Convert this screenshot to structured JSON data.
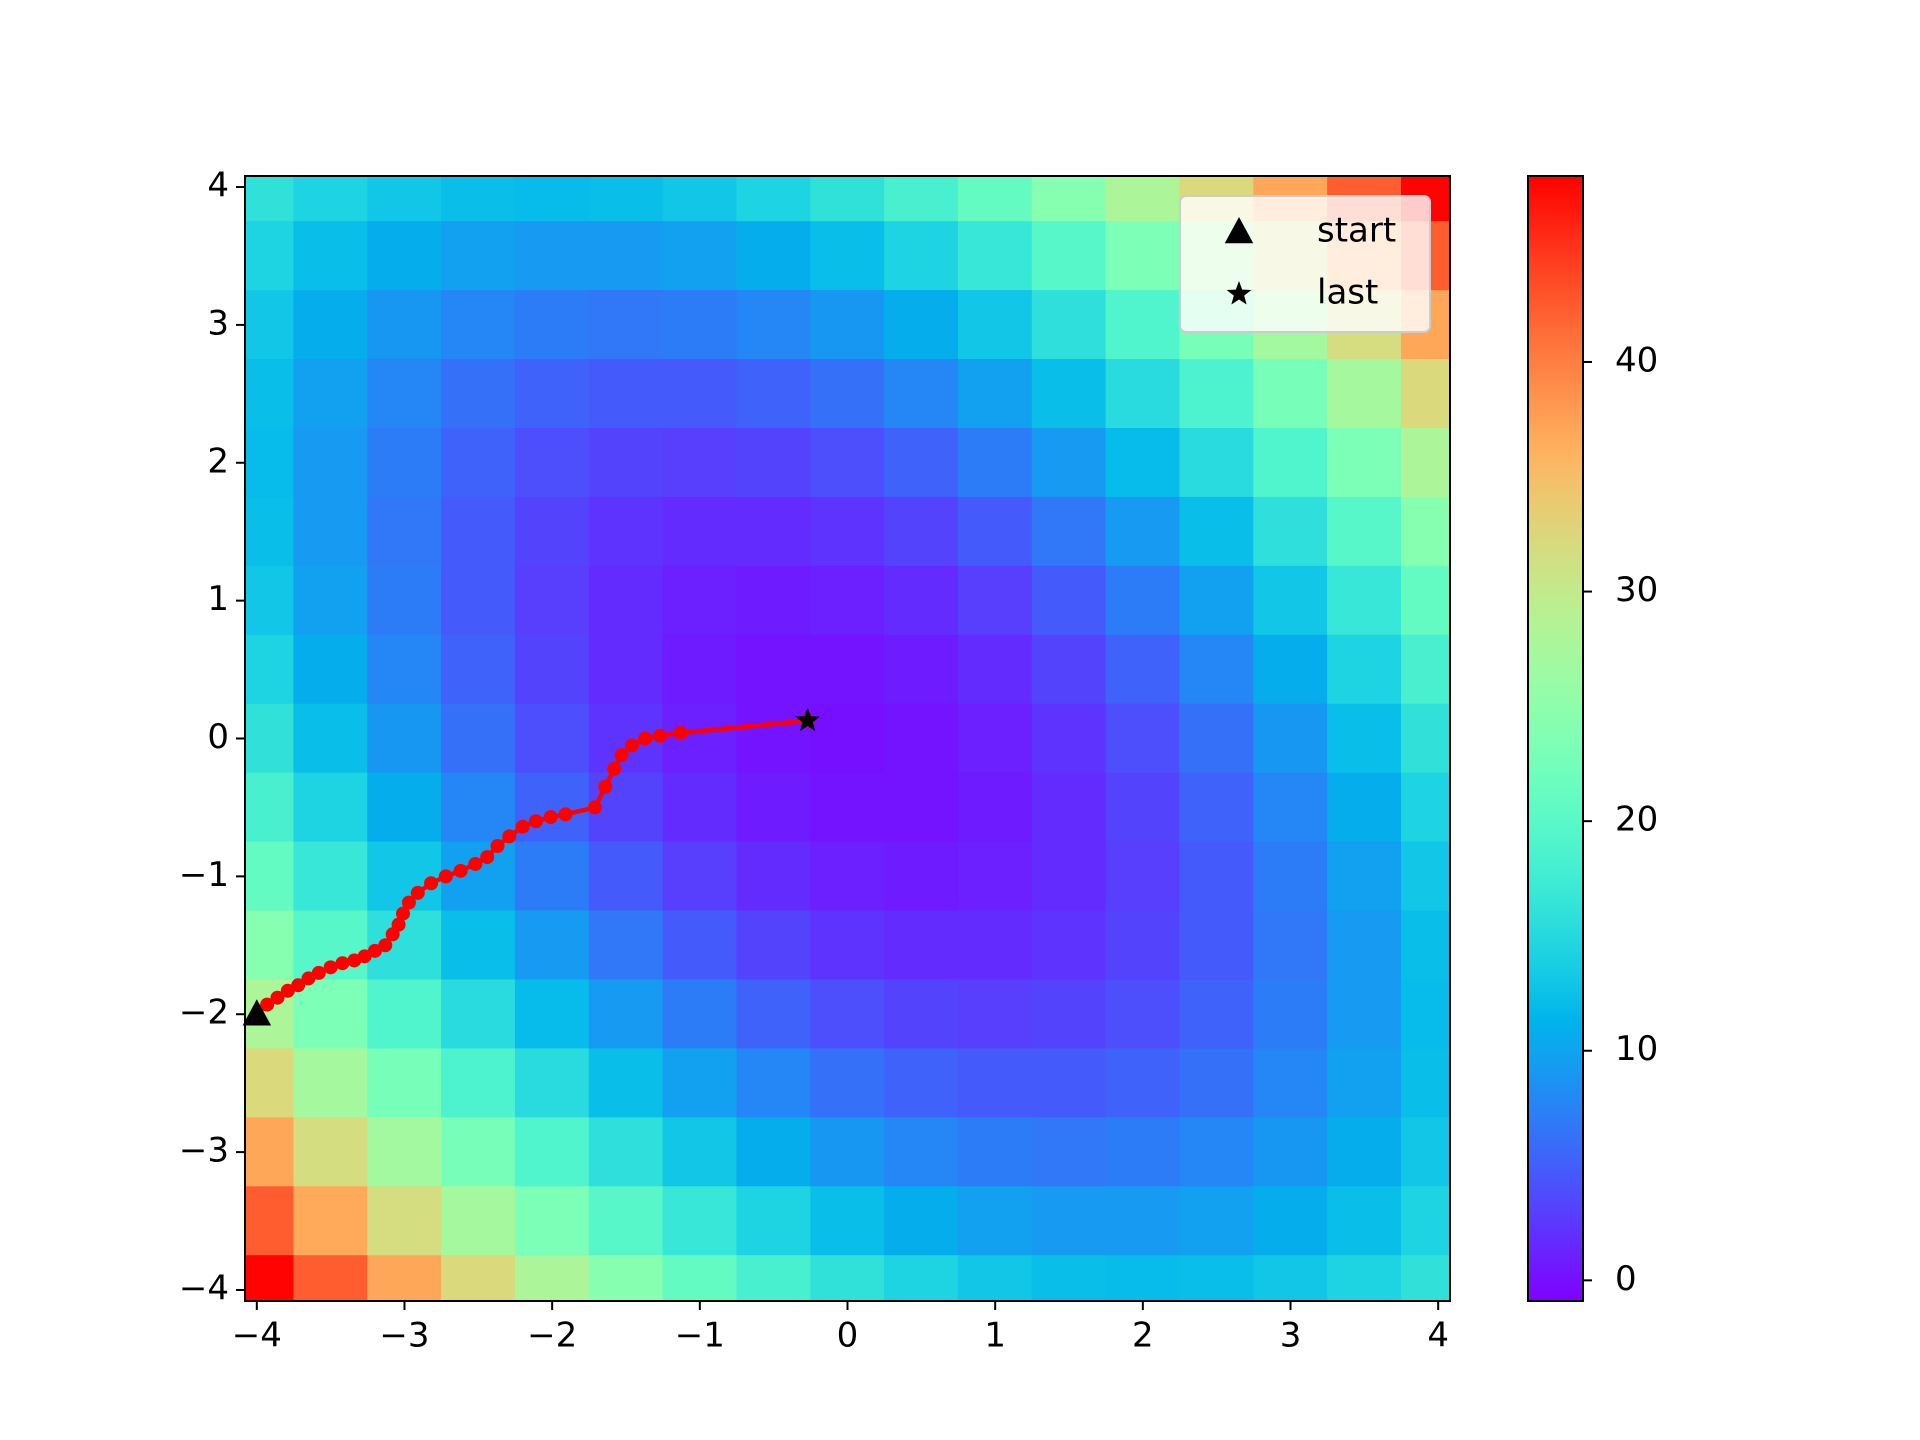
{
  "chart_data": {
    "type": "heatmap",
    "colormap": "rainbow",
    "x": [
      -4,
      -3.5,
      -3,
      -2.5,
      -2,
      -1.5,
      -1,
      -0.5,
      0,
      0.5,
      1,
      1.5,
      2,
      2.5,
      3,
      3.5,
      4
    ],
    "y": [
      4,
      3.5,
      3,
      2.5,
      2,
      1.5,
      1,
      0.5,
      0,
      -0.5,
      -1,
      -1.5,
      -2,
      -2.5,
      -3,
      -3.5,
      -4
    ],
    "z": [
      [
        16,
        14.25,
        13,
        12.25,
        12,
        12.25,
        13,
        14.25,
        16,
        18.25,
        21,
        24.25,
        28,
        32.25,
        37,
        42.25,
        48
      ],
      [
        14.25,
        12.25,
        10.75,
        9.75,
        9.25,
        9.25,
        9.75,
        10.75,
        12.25,
        14.25,
        16.75,
        19.75,
        23.25,
        27.25,
        31.75,
        36.75,
        42.25
      ],
      [
        13,
        10.75,
        9,
        7.75,
        7,
        6.75,
        7,
        7.75,
        9,
        10.75,
        13,
        15.75,
        19,
        22.75,
        27,
        31.75,
        37
      ],
      [
        12.25,
        9.75,
        7.75,
        6.25,
        5.25,
        4.75,
        4.75,
        5.25,
        6.25,
        7.75,
        9.75,
        12.25,
        15.25,
        18.75,
        22.75,
        27.25,
        32.25
      ],
      [
        12,
        9.25,
        7,
        5.25,
        4,
        3.25,
        3,
        3.25,
        4,
        5.25,
        7,
        9.25,
        12,
        15.25,
        19,
        23.25,
        28
      ],
      [
        12.25,
        9.25,
        6.75,
        4.75,
        3.25,
        2.25,
        1.75,
        1.75,
        2.25,
        3.25,
        4.75,
        6.75,
        9.25,
        12.25,
        15.75,
        19.75,
        24.25
      ],
      [
        13,
        9.75,
        7,
        4.75,
        3,
        1.75,
        1,
        0.75,
        1,
        1.75,
        3,
        4.75,
        7,
        9.75,
        13,
        16.75,
        21
      ],
      [
        14.25,
        10.75,
        7.75,
        5.25,
        3.25,
        1.75,
        0.75,
        0.25,
        0.25,
        0.75,
        1.75,
        3.25,
        5.25,
        7.75,
        10.75,
        14.25,
        18.25
      ],
      [
        16,
        12.25,
        9,
        6.25,
        4,
        2.25,
        1,
        0.25,
        0,
        0.25,
        1,
        2.25,
        4,
        6.25,
        9,
        12.25,
        16
      ],
      [
        18.25,
        14.25,
        10.75,
        7.75,
        5.25,
        3.25,
        1.75,
        0.75,
        0.25,
        0.25,
        0.75,
        1.75,
        3.25,
        5.25,
        7.75,
        10.75,
        14.25
      ],
      [
        21,
        16.75,
        13,
        9.75,
        7,
        4.75,
        3,
        1.75,
        1,
        0.75,
        1,
        1.75,
        3,
        4.75,
        7,
        9.75,
        13
      ],
      [
        24.25,
        19.75,
        15.75,
        12.25,
        9.25,
        6.75,
        4.75,
        3.25,
        2.25,
        1.75,
        1.75,
        2.25,
        3.25,
        4.75,
        6.75,
        9.25,
        12.25
      ],
      [
        28,
        23.25,
        19,
        15.25,
        12,
        9.25,
        7,
        5.25,
        4,
        3.25,
        3,
        3.25,
        4,
        5.25,
        7,
        9.25,
        12
      ],
      [
        32.25,
        27.25,
        22.75,
        18.75,
        15.25,
        12.25,
        9.75,
        7.75,
        6.25,
        5.25,
        4.75,
        4.75,
        5.25,
        6.25,
        7.75,
        9.75,
        12.25
      ],
      [
        37,
        31.75,
        27,
        22.75,
        19,
        15.75,
        13,
        10.75,
        9,
        7.75,
        7,
        6.75,
        7,
        7.75,
        9,
        10.75,
        13
      ],
      [
        42.25,
        36.75,
        31.75,
        27.25,
        23.25,
        19.75,
        16.75,
        14.25,
        12.25,
        10.75,
        9.75,
        9.25,
        9.25,
        9.75,
        10.75,
        12.25,
        14.25
      ],
      [
        48,
        42.25,
        37,
        32.25,
        28,
        24.25,
        21,
        18.25,
        16,
        14.25,
        13,
        12.25,
        12,
        12.25,
        13,
        14.25,
        16
      ]
    ],
    "clim": [
      -0.9,
      48.1
    ],
    "colorbar_ticks": [
      0,
      10,
      20,
      30,
      40
    ],
    "xlim": [
      -4.08,
      4.08
    ],
    "ylim": [
      -4.08,
      4.08
    ],
    "xticks": [
      {
        "value": -4,
        "label": "−4"
      },
      {
        "value": -3,
        "label": "−3"
      },
      {
        "value": -2,
        "label": "−2"
      },
      {
        "value": -1,
        "label": "−1"
      },
      0,
      1,
      2,
      3,
      4
    ],
    "yticks": [
      {
        "value": -4,
        "label": "−4"
      },
      {
        "value": -3,
        "label": "−3"
      },
      {
        "value": -2,
        "label": "−2"
      },
      {
        "value": -1,
        "label": "−1"
      },
      0,
      1,
      2,
      3,
      4
    ],
    "path": {
      "color": "#ff0000",
      "x": [
        -4.0,
        -3.93,
        -3.86,
        -3.79,
        -3.72,
        -3.65,
        -3.58,
        -3.5,
        -3.42,
        -3.34,
        -3.27,
        -3.2,
        -3.13,
        -3.08,
        -3.04,
        -3.01,
        -2.97,
        -2.91,
        -2.82,
        -2.72,
        -2.62,
        -2.52,
        -2.44,
        -2.37,
        -2.29,
        -2.2,
        -2.11,
        -2.01,
        -1.91,
        -1.71,
        -1.64,
        -1.58,
        -1.53,
        -1.46,
        -1.37,
        -1.27,
        -1.13,
        -0.27
      ],
      "y": [
        -2.0,
        -1.93,
        -1.88,
        -1.83,
        -1.79,
        -1.74,
        -1.7,
        -1.66,
        -1.63,
        -1.61,
        -1.58,
        -1.54,
        -1.5,
        -1.42,
        -1.35,
        -1.27,
        -1.19,
        -1.12,
        -1.05,
        -1.0,
        -0.96,
        -0.91,
        -0.86,
        -0.78,
        -0.71,
        -0.64,
        -0.6,
        -0.57,
        -0.55,
        -0.5,
        -0.35,
        -0.22,
        -0.12,
        -0.05,
        0.0,
        0.02,
        0.04,
        0.13
      ]
    },
    "series": [
      {
        "name": "start",
        "marker": "triangle",
        "color": "#000000",
        "x": [
          -4.0
        ],
        "y": [
          -2.0
        ]
      },
      {
        "name": "last",
        "marker": "star",
        "color": "#000000",
        "x": [
          -0.27
        ],
        "y": [
          0.13
        ]
      }
    ],
    "legend": "upper right"
  }
}
